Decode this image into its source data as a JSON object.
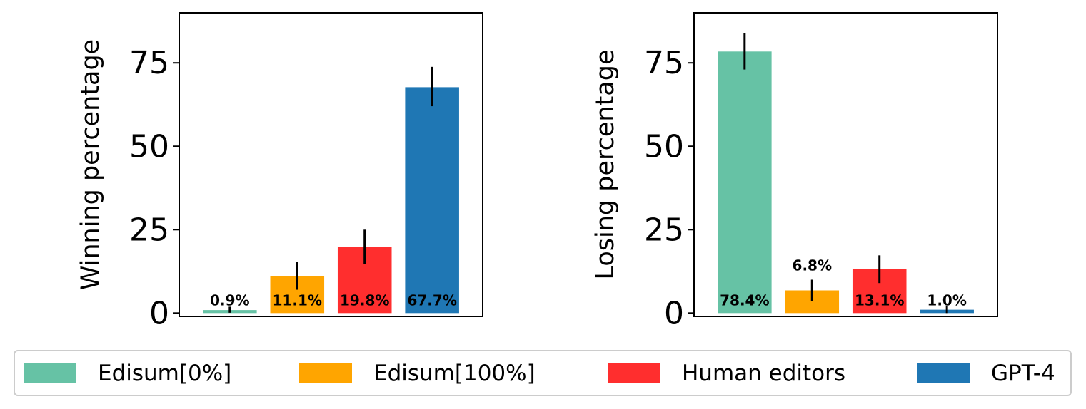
{
  "chart_data": [
    {
      "type": "bar",
      "ylabel": "Winning percentage",
      "ylim": [
        -1,
        90
      ],
      "yticks": [
        "0",
        "25",
        "50",
        "75"
      ],
      "series": [
        {
          "name": "Edisum[0%]",
          "value": 0.9,
          "label": "0.9%",
          "error": [
            0.1,
            1.9
          ],
          "color": "#66c2a5"
        },
        {
          "name": "Edisum[100%]",
          "value": 11.1,
          "label": "11.1%",
          "error": [
            7.0,
            15.3
          ],
          "color": "#ffa500"
        },
        {
          "name": "Human editors",
          "value": 19.8,
          "label": "19.8%",
          "error": [
            14.8,
            25.0
          ],
          "color": "#ff2e2e"
        },
        {
          "name": "GPT-4",
          "value": 67.7,
          "label": "67.7%",
          "error": [
            62.0,
            73.8
          ],
          "color": "#1f77b4"
        }
      ]
    },
    {
      "type": "bar",
      "ylabel": "Losing percentage",
      "ylim": [
        -1,
        90
      ],
      "yticks": [
        "0",
        "25",
        "50",
        "75"
      ],
      "series": [
        {
          "name": "Edisum[0%]",
          "value": 78.4,
          "label": "78.4%",
          "error": [
            73.0,
            84.0
          ],
          "color": "#66c2a5"
        },
        {
          "name": "Edisum[100%]",
          "value": 6.8,
          "label": "6.8%",
          "error": [
            3.5,
            10.0
          ],
          "color": "#ffa500"
        },
        {
          "name": "Human editors",
          "value": 13.1,
          "label": "13.1%",
          "error": [
            9.0,
            17.3
          ],
          "color": "#ff2e2e"
        },
        {
          "name": "GPT-4",
          "value": 1.0,
          "label": "1.0%",
          "error": [
            0.0,
            2.0
          ],
          "color": "#1f77b4"
        }
      ]
    }
  ],
  "legend": {
    "items": [
      {
        "label": "Edisum[0%]",
        "color": "#66c2a5"
      },
      {
        "label": "Edisum[100%]",
        "color": "#ffa500"
      },
      {
        "label": "Human editors",
        "color": "#ff2e2e"
      },
      {
        "label": "GPT-4",
        "color": "#1f77b4"
      }
    ],
    "placement": "bottom"
  }
}
